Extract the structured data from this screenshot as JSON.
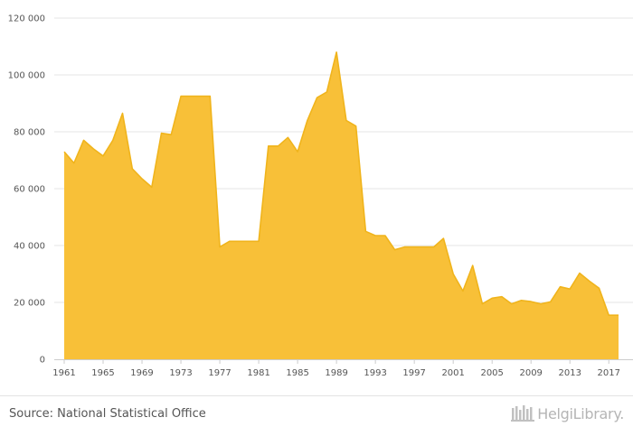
{
  "source": "Source: National Statistical Office",
  "logo_text": "HelgiLibrary.",
  "colors": {
    "area_fill": "#f8c038",
    "area_stroke": "#f0b41c",
    "grid": "#e6e6e6",
    "text": "#555555"
  },
  "chart_data": {
    "type": "area",
    "title": "",
    "xlabel": "",
    "ylabel": "",
    "ylim": [
      0,
      120000
    ],
    "yticks": [
      0,
      20000,
      40000,
      60000,
      80000,
      100000,
      120000
    ],
    "ytick_labels": [
      "0",
      "20 000",
      "40 000",
      "60 000",
      "80 000",
      "100 000",
      "120 000"
    ],
    "xticks": [
      1961,
      1965,
      1969,
      1973,
      1977,
      1981,
      1985,
      1989,
      1993,
      1997,
      2001,
      2005,
      2009,
      2013,
      2017
    ],
    "grid": true,
    "legend": "none",
    "x": [
      1961,
      1962,
      1963,
      1964,
      1965,
      1966,
      1967,
      1968,
      1969,
      1970,
      1971,
      1972,
      1973,
      1974,
      1975,
      1976,
      1977,
      1978,
      1979,
      1980,
      1981,
      1982,
      1983,
      1984,
      1985,
      1986,
      1987,
      1988,
      1989,
      1990,
      1991,
      1992,
      1993,
      1994,
      1995,
      1996,
      1997,
      1998,
      1999,
      2000,
      2001,
      2002,
      2003,
      2004,
      2005,
      2006,
      2007,
      2008,
      2009,
      2010,
      2011,
      2012,
      2013,
      2014,
      2015,
      2016,
      2017,
      2018
    ],
    "values": [
      73000,
      69000,
      77000,
      74000,
      71500,
      77000,
      86500,
      67000,
      63500,
      60500,
      79500,
      79000,
      92500,
      92500,
      92500,
      92500,
      39500,
      41500,
      41500,
      41500,
      41500,
      75000,
      75000,
      78000,
      73000,
      84000,
      92000,
      94000,
      108000,
      84000,
      82000,
      45000,
      43500,
      43500,
      38500,
      39500,
      39500,
      39500,
      39500,
      42500,
      30000,
      24000,
      33000,
      19500,
      21500,
      22000,
      19500,
      20700,
      20300,
      19500,
      20200,
      25500,
      24700,
      30300,
      27500,
      25000,
      15500,
      15500
    ]
  }
}
